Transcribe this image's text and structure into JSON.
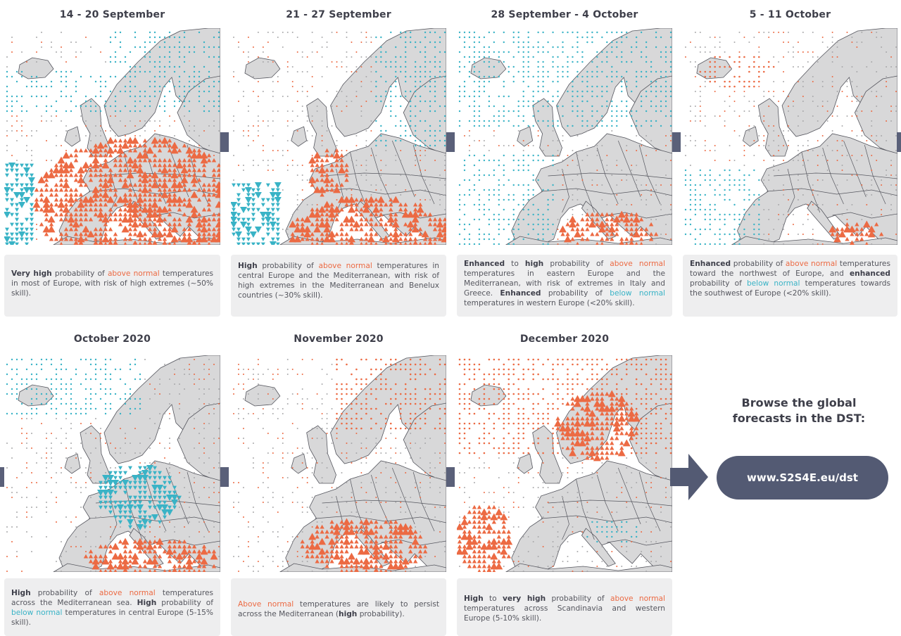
{
  "panels": [
    {
      "title": "14 - 20 September",
      "pattern": "p1",
      "caption": [
        {
          "t": "Very high",
          "s": "b"
        },
        {
          "t": " probability of ",
          "s": ""
        },
        {
          "t": "above normal",
          "s": "above"
        },
        {
          "t": " temperatures in most of Europe, with risk of high extremes (~50% skill).",
          "s": ""
        }
      ]
    },
    {
      "title": "21 - 27 September",
      "pattern": "p2",
      "caption": [
        {
          "t": "High",
          "s": "b"
        },
        {
          "t": " probability of ",
          "s": ""
        },
        {
          "t": "above normal",
          "s": "above"
        },
        {
          "t": " temperatures in central Europe and the Mediterranean, with risk of high extremes in the Mediterranean and Benelux countries (~30% skill).",
          "s": ""
        }
      ]
    },
    {
      "title": "28 September - 4 October",
      "pattern": "p3",
      "caption": [
        {
          "t": "Enhanced",
          "s": "b"
        },
        {
          "t": " to ",
          "s": ""
        },
        {
          "t": "high",
          "s": "b"
        },
        {
          "t": " probability of ",
          "s": ""
        },
        {
          "t": "above normal",
          "s": "above"
        },
        {
          "t": " temperatures in eastern Europe and the Mediterranean, with risk of extremes in Italy and Greece. ",
          "s": ""
        },
        {
          "t": "Enhanced",
          "s": "b"
        },
        {
          "t": " probability of ",
          "s": ""
        },
        {
          "t": "below normal",
          "s": "below"
        },
        {
          "t": " temperatures in western Europe (<20% skill).",
          "s": ""
        }
      ]
    },
    {
      "title": "5 - 11 October",
      "pattern": "p4",
      "caption": [
        {
          "t": "Enhanced",
          "s": "b"
        },
        {
          "t": " probability of ",
          "s": ""
        },
        {
          "t": "above normal",
          "s": "above"
        },
        {
          "t": " temperatures toward the northwest of Europe, and ",
          "s": ""
        },
        {
          "t": "enhanced",
          "s": "b"
        },
        {
          "t": " probability of ",
          "s": ""
        },
        {
          "t": "below normal",
          "s": "below"
        },
        {
          "t": " temperatures towards the southwest of Europe (<20% skill).",
          "s": ""
        }
      ]
    },
    {
      "title": "October 2020",
      "pattern": "p5",
      "caption": [
        {
          "t": "High",
          "s": "b"
        },
        {
          "t": " probability of ",
          "s": ""
        },
        {
          "t": "above normal",
          "s": "above"
        },
        {
          "t": " temperatures across the Mediterranean sea. ",
          "s": ""
        },
        {
          "t": "High",
          "s": "b"
        },
        {
          "t": " probability of ",
          "s": ""
        },
        {
          "t": "below normal",
          "s": "below"
        },
        {
          "t": " temperatures in central Europe (5-15% skill).",
          "s": ""
        }
      ]
    },
    {
      "title": "November 2020",
      "pattern": "p6",
      "caption": [
        {
          "t": "Above normal",
          "s": "above"
        },
        {
          "t": " temperatures are likely to persist across the Mediterranean (",
          "s": ""
        },
        {
          "t": "high",
          "s": "b"
        },
        {
          "t": " probability).",
          "s": ""
        }
      ]
    },
    {
      "title": "December 2020",
      "pattern": "p7",
      "caption": [
        {
          "t": "High",
          "s": "b"
        },
        {
          "t": " to ",
          "s": ""
        },
        {
          "t": "very high",
          "s": "b"
        },
        {
          "t": " probability of ",
          "s": ""
        },
        {
          "t": "above normal",
          "s": "above"
        },
        {
          "t": " temperatures across Scandinavia and western Europe (5-10% skill).",
          "s": ""
        }
      ]
    }
  ],
  "browse": {
    "text": "Browse the global forecasts in the DST:",
    "url": "www.S2S4E.eu/dst"
  },
  "colors": {
    "above": "#ec6a43",
    "below": "#39b3c6",
    "land": "#d8d8d9",
    "neutral": "#a9a9ab",
    "accent": "#535a73"
  },
  "icons": {
    "arrow": "right-arrow-icon",
    "above": "triangle-up-icon",
    "below": "triangle-down-icon"
  }
}
